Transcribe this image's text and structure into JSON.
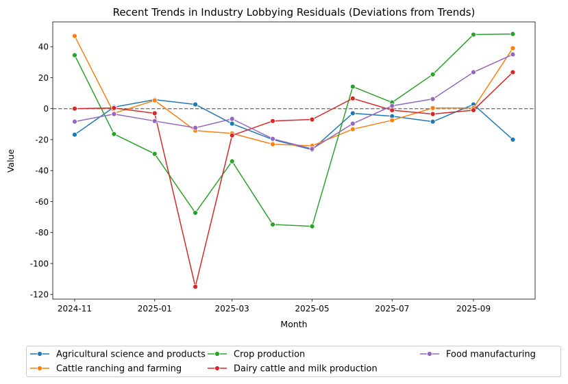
{
  "chart_data": {
    "type": "line",
    "title": "Recent Trends in Industry Lobbying Residuals (Deviations from Trends)",
    "xlabel": "Month",
    "ylabel": "Value",
    "ylim": [
      -123,
      56
    ],
    "yticks": [
      -120,
      -100,
      -80,
      -60,
      -40,
      -20,
      0,
      20,
      40
    ],
    "xticks": [
      "2024-11",
      "2025-01",
      "2025-03",
      "2025-05",
      "2025-07",
      "2025-09"
    ],
    "x": [
      "2024-11",
      "2024-12",
      "2025-01",
      "2025-02",
      "2025-03",
      "2025-04",
      "2025-05",
      "2025-06",
      "2025-07",
      "2025-08",
      "2025-09",
      "2025-10"
    ],
    "reference_line": {
      "y": 0,
      "style": "dashed",
      "color": "#808080"
    },
    "grid": false,
    "legend_placement": "bottom",
    "series": [
      {
        "name": "Agricultural science and products",
        "color": "#1f77b4",
        "values": [
          -16.8,
          1,
          5.8,
          2.7,
          -9.7,
          -20,
          -26.5,
          -3,
          -4.9,
          -8.4,
          2.7,
          -20
        ]
      },
      {
        "name": "Cattle ranching and farming",
        "color": "#ff7f0e",
        "values": [
          46.9,
          -3,
          5.3,
          -14.2,
          -16,
          -23,
          -24,
          -13.3,
          -7.5,
          0.4,
          0.4,
          39
        ]
      },
      {
        "name": "Crop production",
        "color": "#2ca02c",
        "values": [
          34.5,
          -16.4,
          -29.2,
          -67.3,
          -34,
          -74.8,
          -76,
          14.2,
          4,
          22.1,
          47.8,
          48.2
        ]
      },
      {
        "name": "Dairy cattle and milk production",
        "color": "#d62728",
        "values": [
          0,
          0.4,
          -3,
          -115,
          -17.3,
          -8,
          -7,
          6.6,
          -1,
          -3.5,
          -1,
          23.5
        ]
      },
      {
        "name": "Food manufacturing",
        "color": "#9467bd",
        "values": [
          -8.4,
          -3.5,
          -8,
          -12.4,
          -6.6,
          -19.5,
          -26,
          -9.7,
          1.8,
          6.2,
          23.5,
          35
        ]
      }
    ]
  }
}
